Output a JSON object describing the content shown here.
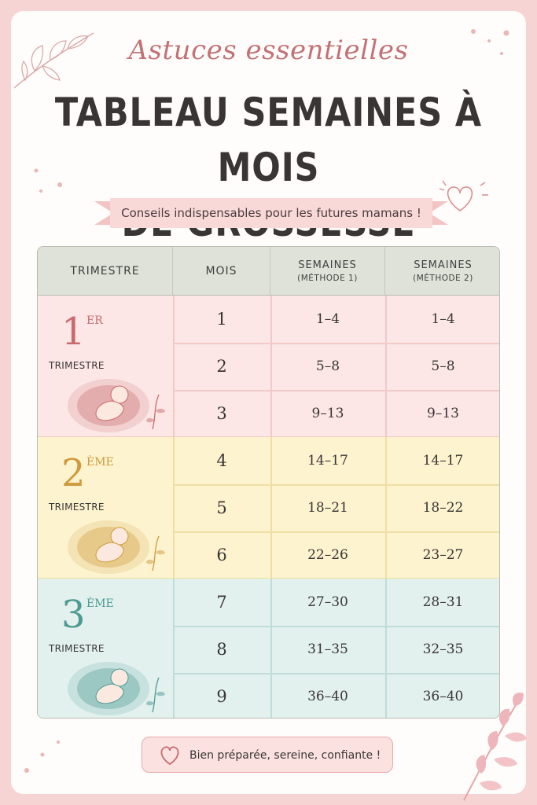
{
  "header": {
    "script_title": "Astuces essentielles",
    "title_line1": "TABLEAU SEMAINES À MOIS",
    "title_line2": "DE GROSSESSE",
    "ribbon": "Conseils indispensables pour les futures mamans !"
  },
  "table": {
    "columns": [
      {
        "label": "TRIMESTRE",
        "sub": ""
      },
      {
        "label": "MOIS",
        "sub": ""
      },
      {
        "label": "SEMAINES",
        "sub": "(MÉTHODE 1)"
      },
      {
        "label": "SEMAINES",
        "sub": "(MÉTHODE 2)"
      }
    ],
    "trimesters": [
      {
        "num": "1",
        "sup": "ER",
        "label": "TRIMESTRE",
        "color": "#c96b6e",
        "bg": "#fce7e6",
        "line": "#f0c9c8"
      },
      {
        "num": "2",
        "sup": "ÈME",
        "label": "TRIMESTRE",
        "color": "#cf9a3c",
        "bg": "#fdf3cf",
        "line": "#efdfa4"
      },
      {
        "num": "3",
        "sup": "ÈME",
        "label": "TRIMESTRE",
        "color": "#4d9a93",
        "bg": "#e2f1ee",
        "line": "#bfdcd7"
      }
    ],
    "rows": [
      {
        "mois": "1",
        "m1": "1–4",
        "m2": "1–4"
      },
      {
        "mois": "2",
        "m1": "5–8",
        "m2": "5–8"
      },
      {
        "mois": "3",
        "m1": "9–13",
        "m2": "9–13"
      },
      {
        "mois": "4",
        "m1": "14–17",
        "m2": "14–17"
      },
      {
        "mois": "5",
        "m1": "18–21",
        "m2": "18–22"
      },
      {
        "mois": "6",
        "m1": "22–26",
        "m2": "23–27"
      },
      {
        "mois": "7",
        "m1": "27–30",
        "m2": "28–31"
      },
      {
        "mois": "8",
        "m1": "31–35",
        "m2": "32–35"
      },
      {
        "mois": "9",
        "m1": "36–40",
        "m2": "36–40"
      }
    ]
  },
  "footer": {
    "text": "Bien préparée, sereine, confiante !"
  },
  "icons": {
    "footer": "heart-icon",
    "decor": [
      "leaf-branch-icon",
      "heart-icon",
      "fetus-illustration"
    ]
  }
}
